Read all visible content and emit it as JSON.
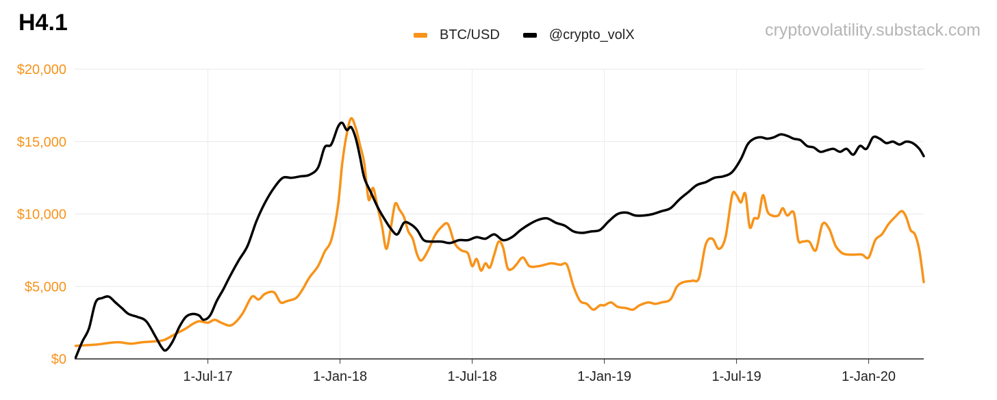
{
  "page": {
    "title": "H4.1",
    "source": "cryptovolatility.substack.com"
  },
  "chart_data": {
    "type": "line",
    "title": "H4.1",
    "xlabel": "",
    "ylabel": "",
    "ylim": [
      0,
      20000
    ],
    "grid": true,
    "legend_position": "top-center",
    "y_ticks": [
      {
        "value": 0,
        "label": "$0"
      },
      {
        "value": 5000,
        "label": "$5,000"
      },
      {
        "value": 10000,
        "label": "$10,000"
      },
      {
        "value": 15000,
        "label": "$15,000"
      },
      {
        "value": 20000,
        "label": "$20,000"
      }
    ],
    "x_ticks": [
      {
        "label": "1-Jul-17",
        "month": 6
      },
      {
        "label": "1-Jan-18",
        "month": 12
      },
      {
        "label": "1-Jul-18",
        "month": 18
      },
      {
        "label": "1-Jan-19",
        "month": 24
      },
      {
        "label": "1-Jul-19",
        "month": 30
      },
      {
        "label": "1-Jan-20",
        "month": 36
      }
    ],
    "x_range_months": [
      -0.05,
      38.5
    ],
    "series": [
      {
        "name": "BTC/USD",
        "color": "#f7931a",
        "points": [
          [
            0,
            900
          ],
          [
            0.5,
            950
          ],
          [
            1,
            1000
          ],
          [
            1.5,
            1100
          ],
          [
            2,
            1150
          ],
          [
            2.5,
            1050
          ],
          [
            3,
            1150
          ],
          [
            3.5,
            1200
          ],
          [
            4,
            1300
          ],
          [
            4.5,
            1700
          ],
          [
            5,
            2100
          ],
          [
            5.3,
            2400
          ],
          [
            5.6,
            2600
          ],
          [
            6,
            2500
          ],
          [
            6.3,
            2700
          ],
          [
            6.6,
            2500
          ],
          [
            7,
            2300
          ],
          [
            7.3,
            2600
          ],
          [
            7.6,
            3200
          ],
          [
            8,
            4300
          ],
          [
            8.3,
            4100
          ],
          [
            8.6,
            4500
          ],
          [
            9,
            4600
          ],
          [
            9.3,
            3900
          ],
          [
            9.6,
            4000
          ],
          [
            10,
            4200
          ],
          [
            10.3,
            4800
          ],
          [
            10.6,
            5600
          ],
          [
            11,
            6400
          ],
          [
            11.3,
            7400
          ],
          [
            11.6,
            8200
          ],
          [
            11.9,
            10500
          ],
          [
            12.1,
            13500
          ],
          [
            12.3,
            15500
          ],
          [
            12.5,
            16600
          ],
          [
            12.7,
            16000
          ],
          [
            12.9,
            14800
          ],
          [
            13.1,
            13500
          ],
          [
            13.3,
            11000
          ],
          [
            13.5,
            11800
          ],
          [
            13.7,
            10500
          ],
          [
            13.9,
            9200
          ],
          [
            14.1,
            7600
          ],
          [
            14.3,
            9000
          ],
          [
            14.5,
            10700
          ],
          [
            14.7,
            10300
          ],
          [
            14.9,
            9800
          ],
          [
            15.1,
            8800
          ],
          [
            15.3,
            8300
          ],
          [
            15.5,
            7200
          ],
          [
            15.7,
            6800
          ],
          [
            16,
            7500
          ],
          [
            16.3,
            8500
          ],
          [
            16.6,
            9100
          ],
          [
            16.9,
            9300
          ],
          [
            17.2,
            8000
          ],
          [
            17.5,
            7500
          ],
          [
            17.8,
            7300
          ],
          [
            18,
            6400
          ],
          [
            18.2,
            6900
          ],
          [
            18.4,
            6100
          ],
          [
            18.6,
            6600
          ],
          [
            18.8,
            6300
          ],
          [
            19,
            7200
          ],
          [
            19.2,
            8100
          ],
          [
            19.4,
            7700
          ],
          [
            19.6,
            6300
          ],
          [
            19.8,
            6200
          ],
          [
            20,
            6500
          ],
          [
            20.3,
            7000
          ],
          [
            20.6,
            6400
          ],
          [
            21,
            6400
          ],
          [
            21.3,
            6500
          ],
          [
            21.6,
            6600
          ],
          [
            22,
            6500
          ],
          [
            22.3,
            6500
          ],
          [
            22.6,
            5000
          ],
          [
            22.9,
            4000
          ],
          [
            23.2,
            3800
          ],
          [
            23.5,
            3400
          ],
          [
            23.8,
            3700
          ],
          [
            24,
            3700
          ],
          [
            24.3,
            3900
          ],
          [
            24.6,
            3600
          ],
          [
            25,
            3500
          ],
          [
            25.3,
            3400
          ],
          [
            25.6,
            3700
          ],
          [
            26,
            3900
          ],
          [
            26.3,
            3800
          ],
          [
            26.6,
            3900
          ],
          [
            27,
            4100
          ],
          [
            27.3,
            5000
          ],
          [
            27.6,
            5300
          ],
          [
            28,
            5400
          ],
          [
            28.3,
            5600
          ],
          [
            28.6,
            7900
          ],
          [
            28.9,
            8300
          ],
          [
            29.2,
            7600
          ],
          [
            29.5,
            8400
          ],
          [
            29.8,
            11300
          ],
          [
            30,
            11300
          ],
          [
            30.2,
            10800
          ],
          [
            30.4,
            11400
          ],
          [
            30.6,
            9100
          ],
          [
            30.8,
            9700
          ],
          [
            31,
            9800
          ],
          [
            31.2,
            11300
          ],
          [
            31.4,
            10200
          ],
          [
            31.6,
            9900
          ],
          [
            31.9,
            9900
          ],
          [
            32.1,
            10400
          ],
          [
            32.3,
            9900
          ],
          [
            32.6,
            10100
          ],
          [
            32.8,
            8200
          ],
          [
            33,
            8100
          ],
          [
            33.3,
            8100
          ],
          [
            33.6,
            7500
          ],
          [
            33.9,
            9300
          ],
          [
            34.2,
            9000
          ],
          [
            34.5,
            7800
          ],
          [
            34.8,
            7300
          ],
          [
            35.1,
            7200
          ],
          [
            35.4,
            7200
          ],
          [
            35.7,
            7200
          ],
          [
            36,
            7000
          ],
          [
            36.3,
            8200
          ],
          [
            36.6,
            8600
          ],
          [
            36.9,
            9300
          ],
          [
            37.2,
            9800
          ],
          [
            37.5,
            10200
          ],
          [
            37.7,
            9800
          ],
          [
            37.9,
            8900
          ],
          [
            38.1,
            8600
          ],
          [
            38.3,
            7500
          ],
          [
            38.5,
            5300
          ]
        ]
      },
      {
        "name": "@crypto_volX",
        "color": "#000000",
        "points": [
          [
            0,
            100
          ],
          [
            0.3,
            1200
          ],
          [
            0.6,
            2100
          ],
          [
            0.9,
            3900
          ],
          [
            1.2,
            4200
          ],
          [
            1.5,
            4300
          ],
          [
            1.8,
            3900
          ],
          [
            2.1,
            3500
          ],
          [
            2.4,
            3100
          ],
          [
            2.8,
            2900
          ],
          [
            3.2,
            2600
          ],
          [
            3.6,
            1600
          ],
          [
            3.9,
            800
          ],
          [
            4.1,
            600
          ],
          [
            4.4,
            1200
          ],
          [
            4.7,
            2200
          ],
          [
            5,
            2900
          ],
          [
            5.3,
            3100
          ],
          [
            5.6,
            3000
          ],
          [
            5.8,
            2700
          ],
          [
            6.1,
            3000
          ],
          [
            6.4,
            4000
          ],
          [
            6.7,
            4800
          ],
          [
            7,
            5700
          ],
          [
            7.4,
            6800
          ],
          [
            7.8,
            7800
          ],
          [
            8.2,
            9500
          ],
          [
            8.6,
            10800
          ],
          [
            9,
            11800
          ],
          [
            9.4,
            12500
          ],
          [
            9.8,
            12500
          ],
          [
            10.2,
            12600
          ],
          [
            10.6,
            12700
          ],
          [
            11,
            13200
          ],
          [
            11.3,
            14600
          ],
          [
            11.6,
            14800
          ],
          [
            11.9,
            16000
          ],
          [
            12.1,
            16300
          ],
          [
            12.3,
            15800
          ],
          [
            12.5,
            16000
          ],
          [
            12.7,
            15300
          ],
          [
            12.9,
            14000
          ],
          [
            13.1,
            12500
          ],
          [
            13.4,
            11500
          ],
          [
            13.7,
            10500
          ],
          [
            14,
            9700
          ],
          [
            14.3,
            9000
          ],
          [
            14.6,
            8600
          ],
          [
            14.9,
            9400
          ],
          [
            15.2,
            9300
          ],
          [
            15.5,
            8900
          ],
          [
            15.8,
            8200
          ],
          [
            16.2,
            8100
          ],
          [
            16.6,
            8100
          ],
          [
            17,
            8000
          ],
          [
            17.4,
            8200
          ],
          [
            17.8,
            8200
          ],
          [
            18.2,
            8400
          ],
          [
            18.6,
            8300
          ],
          [
            19,
            8600
          ],
          [
            19.4,
            8200
          ],
          [
            19.8,
            8400
          ],
          [
            20.2,
            8900
          ],
          [
            20.6,
            9300
          ],
          [
            21,
            9600
          ],
          [
            21.4,
            9700
          ],
          [
            21.8,
            9400
          ],
          [
            22.2,
            9200
          ],
          [
            22.6,
            8800
          ],
          [
            23,
            8700
          ],
          [
            23.4,
            8800
          ],
          [
            23.8,
            8900
          ],
          [
            24.2,
            9500
          ],
          [
            24.6,
            10000
          ],
          [
            25,
            10100
          ],
          [
            25.4,
            9900
          ],
          [
            25.8,
            9900
          ],
          [
            26.2,
            10000
          ],
          [
            26.6,
            10200
          ],
          [
            27,
            10400
          ],
          [
            27.4,
            11000
          ],
          [
            27.8,
            11500
          ],
          [
            28.2,
            12000
          ],
          [
            28.6,
            12200
          ],
          [
            29,
            12500
          ],
          [
            29.4,
            12600
          ],
          [
            29.8,
            12900
          ],
          [
            30.2,
            13800
          ],
          [
            30.5,
            14800
          ],
          [
            30.8,
            15200
          ],
          [
            31.1,
            15300
          ],
          [
            31.4,
            15200
          ],
          [
            31.7,
            15300
          ],
          [
            32,
            15500
          ],
          [
            32.3,
            15400
          ],
          [
            32.6,
            15200
          ],
          [
            32.9,
            15100
          ],
          [
            33.2,
            14700
          ],
          [
            33.5,
            14600
          ],
          [
            33.8,
            14300
          ],
          [
            34.1,
            14400
          ],
          [
            34.4,
            14500
          ],
          [
            34.7,
            14300
          ],
          [
            35,
            14500
          ],
          [
            35.3,
            14100
          ],
          [
            35.6,
            14700
          ],
          [
            35.9,
            14500
          ],
          [
            36.2,
            15300
          ],
          [
            36.5,
            15200
          ],
          [
            36.8,
            14900
          ],
          [
            37.1,
            15000
          ],
          [
            37.4,
            14800
          ],
          [
            37.7,
            15000
          ],
          [
            38,
            14900
          ],
          [
            38.3,
            14500
          ],
          [
            38.5,
            14000
          ]
        ]
      }
    ]
  }
}
